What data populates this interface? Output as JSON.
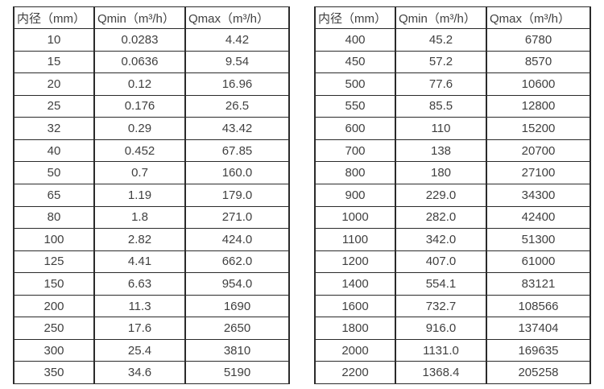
{
  "colors": {
    "background": "#ffffff",
    "border": "#2b2b2b",
    "text": "#404040"
  },
  "tables": [
    {
      "id": "flow-table-left",
      "headers": {
        "diameter": "内径（mm）",
        "qmin": "Qmin（m³/h）",
        "qmax": "Qmax（m³/h）"
      },
      "rows": [
        [
          "10",
          "0.0283",
          "4.42"
        ],
        [
          "15",
          "0.0636",
          "9.54"
        ],
        [
          "20",
          "0.12",
          "16.96"
        ],
        [
          "25",
          "0.176",
          "26.5"
        ],
        [
          "32",
          "0.29",
          "43.42"
        ],
        [
          "40",
          "0.452",
          "67.85"
        ],
        [
          "50",
          "0.7",
          "160.0"
        ],
        [
          "65",
          "1.19",
          "179.0"
        ],
        [
          "80",
          "1.8",
          "271.0"
        ],
        [
          "100",
          "2.82",
          "424.0"
        ],
        [
          "125",
          "4.41",
          "662.0"
        ],
        [
          "150",
          "6.63",
          "954.0"
        ],
        [
          "200",
          "11.3",
          "1690"
        ],
        [
          "250",
          "17.6",
          "2650"
        ],
        [
          "300",
          "25.4",
          "3810"
        ],
        [
          "350",
          "34.6",
          "5190"
        ]
      ]
    },
    {
      "id": "flow-table-right",
      "headers": {
        "diameter": "内径（mm）",
        "qmin": "Qmin（m³/h）",
        "qmax": "Qmax（m³/h）"
      },
      "rows": [
        [
          "400",
          "45.2",
          "6780"
        ],
        [
          "450",
          "57.2",
          "8570"
        ],
        [
          "500",
          "77.6",
          "10600"
        ],
        [
          "550",
          "85.5",
          "12800"
        ],
        [
          "600",
          "110",
          "15200"
        ],
        [
          "700",
          "138",
          "20700"
        ],
        [
          "800",
          "180",
          "27100"
        ],
        [
          "900",
          "229.0",
          "34300"
        ],
        [
          "1000",
          "282.0",
          "42400"
        ],
        [
          "1100",
          "342.0",
          "51300"
        ],
        [
          "1200",
          "407.0",
          "61000"
        ],
        [
          "1400",
          "554.1",
          "83121"
        ],
        [
          "1600",
          "732.7",
          "108566"
        ],
        [
          "1800",
          "916.0",
          "137404"
        ],
        [
          "2000",
          "1131.0",
          "169635"
        ],
        [
          "2200",
          "1368.4",
          "205258"
        ]
      ]
    }
  ]
}
